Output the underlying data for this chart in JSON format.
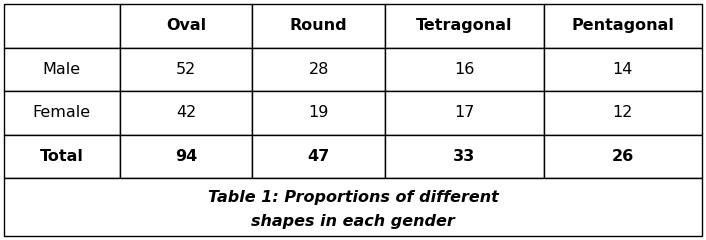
{
  "columns": [
    "",
    "Oval",
    "Round",
    "Tetragonal",
    "Pentagonal"
  ],
  "rows": [
    [
      "Male",
      "52",
      "28",
      "16",
      "14"
    ],
    [
      "Female",
      "42",
      "19",
      "17",
      "12"
    ],
    [
      "Total",
      "94",
      "47",
      "33",
      "26"
    ]
  ],
  "caption_line1": "Table 1: Proportions of different",
  "caption_line2": "shapes in each gender",
  "background_color": "#ffffff",
  "border_color": "#000000",
  "header_fontsize": 11.5,
  "body_fontsize": 11.5,
  "caption_fontsize": 11.5
}
